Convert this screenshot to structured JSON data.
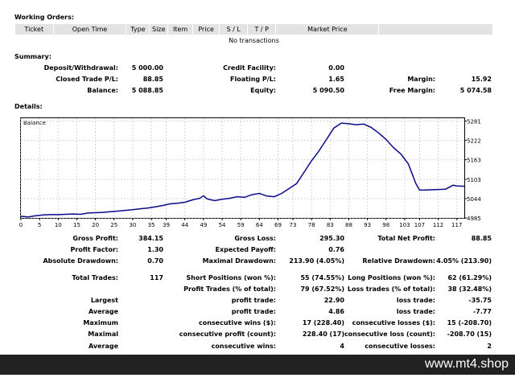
{
  "working_orders": {
    "title": "Working Orders:",
    "columns": [
      "Ticket",
      "Open Time",
      "Type",
      "Size",
      "Item",
      "Price",
      "S / L",
      "T / P",
      "Market Price",
      ""
    ],
    "empty_text": "No transactions"
  },
  "summary": {
    "title": "Summary:",
    "deposit_label": "Deposit/Withdrawal:",
    "deposit_value": "5 000.00",
    "credit_label": "Credit Facility:",
    "credit_value": "0.00",
    "closed_pl_label": "Closed Trade P/L:",
    "closed_pl_value": "88.85",
    "floating_label": "Floating P/L:",
    "floating_value": "1.65",
    "margin_label": "Margin:",
    "margin_value": "15.92",
    "balance_label": "Balance:",
    "balance_value": "5 088.85",
    "equity_label": "Equity:",
    "equity_value": "5 090.50",
    "free_margin_label": "Free Margin:",
    "free_margin_value": "5 074.58"
  },
  "details": {
    "title": "Details:",
    "rows": [
      {
        "l1": "Gross Profit:",
        "v1": "384.15",
        "l2": "Gross Loss:",
        "v2": "295.30",
        "l3": "Total Net Profit:",
        "v3": "88.85"
      },
      {
        "l1": "Profit Factor:",
        "v1": "1.30",
        "l2": "Expected Payoff:",
        "v2": "0.76",
        "l3": "",
        "v3": ""
      },
      {
        "l1": "Absolute Drawdown:",
        "v1": "0.70",
        "l2": "Maximal Drawdown:",
        "v2": "213.90 (4.05%)",
        "l3": "Relative Drawdown:",
        "v3": "4.05% (213.90)"
      }
    ],
    "trades": [
      {
        "l1": "Total Trades:",
        "v1": "117",
        "l2": "Short Positions (won %):",
        "v2": "55 (74.55%)",
        "l3": "Long Positions (won %):",
        "v3": "62 (61.29%)"
      },
      {
        "l1": "",
        "v1": "",
        "l2": "Profit Trades (% of total):",
        "v2": "79 (67.52%)",
        "l3": "Loss trades (% of total):",
        "v3": "38 (32.48%)"
      },
      {
        "l1": "Largest",
        "v1": "",
        "l2": "profit trade:",
        "v2": "22.90",
        "l3": "loss trade:",
        "v3": "-35.75"
      },
      {
        "l1": "Average",
        "v1": "",
        "l2": "profit trade:",
        "v2": "4.86",
        "l3": "loss trade:",
        "v3": "-7.77"
      },
      {
        "l1": "Maximum",
        "v1": "",
        "l2": "consecutive wins ($):",
        "v2": "17 (228.40)",
        "l3": "consecutive losses ($):",
        "v3": "15 (-208.70)"
      },
      {
        "l1": "Maximal",
        "v1": "",
        "l2": "consecutive profit (count):",
        "v2": "228.40 (17)",
        "l3": "consecutive loss (count):",
        "v3": "-208.70 (15)"
      },
      {
        "l1": "Average",
        "v1": "",
        "l2": "consecutive wins:",
        "v2": "4",
        "l3": "consecutive losses:",
        "v3": "2"
      }
    ]
  },
  "footer": {
    "text": "www.mt4.shop"
  },
  "chart_data": {
    "type": "line",
    "title": "Balance",
    "y_ticks": [
      4985,
      5044,
      5103,
      5163,
      5222,
      5281
    ],
    "x_ticks": [
      0,
      5,
      10,
      15,
      20,
      25,
      30,
      35,
      39,
      44,
      49,
      54,
      59,
      64,
      69,
      73,
      78,
      83,
      88,
      93,
      98,
      103,
      107,
      112,
      117
    ],
    "ylim": [
      4985,
      5290
    ],
    "xlim": [
      0,
      119
    ],
    "line_color": "#0a0a8a",
    "series": [
      {
        "x": [
          0,
          2,
          4,
          6,
          8,
          10,
          12,
          14,
          16,
          18,
          20,
          22,
          24,
          26,
          28,
          30,
          32,
          34,
          36,
          38,
          40,
          42,
          44,
          46,
          48,
          49,
          50,
          52,
          54,
          56,
          58,
          60,
          62,
          64,
          66,
          68,
          70,
          72,
          74,
          76,
          78,
          80,
          82,
          84,
          86,
          88,
          90,
          92,
          94,
          96,
          98,
          100,
          102,
          104,
          106,
          107,
          108,
          110,
          112,
          114,
          116,
          117,
          119
        ],
        "y": [
          4990,
          4988,
          4992,
          4994,
          4995,
          4995,
          4996,
          4997,
          4996,
          5000,
          5001,
          5002,
          5004,
          5006,
          5008,
          5010,
          5013,
          5015,
          5019,
          5023,
          5028,
          5030,
          5033,
          5040,
          5045,
          5053,
          5043,
          5038,
          5042,
          5045,
          5050,
          5048,
          5056,
          5060,
          5052,
          5050,
          5060,
          5075,
          5090,
          5125,
          5160,
          5190,
          5225,
          5260,
          5275,
          5273,
          5270,
          5272,
          5262,
          5245,
          5225,
          5200,
          5180,
          5150,
          5090,
          5070,
          5070,
          5071,
          5072,
          5073,
          5085,
          5083,
          5082
        ]
      }
    ]
  }
}
